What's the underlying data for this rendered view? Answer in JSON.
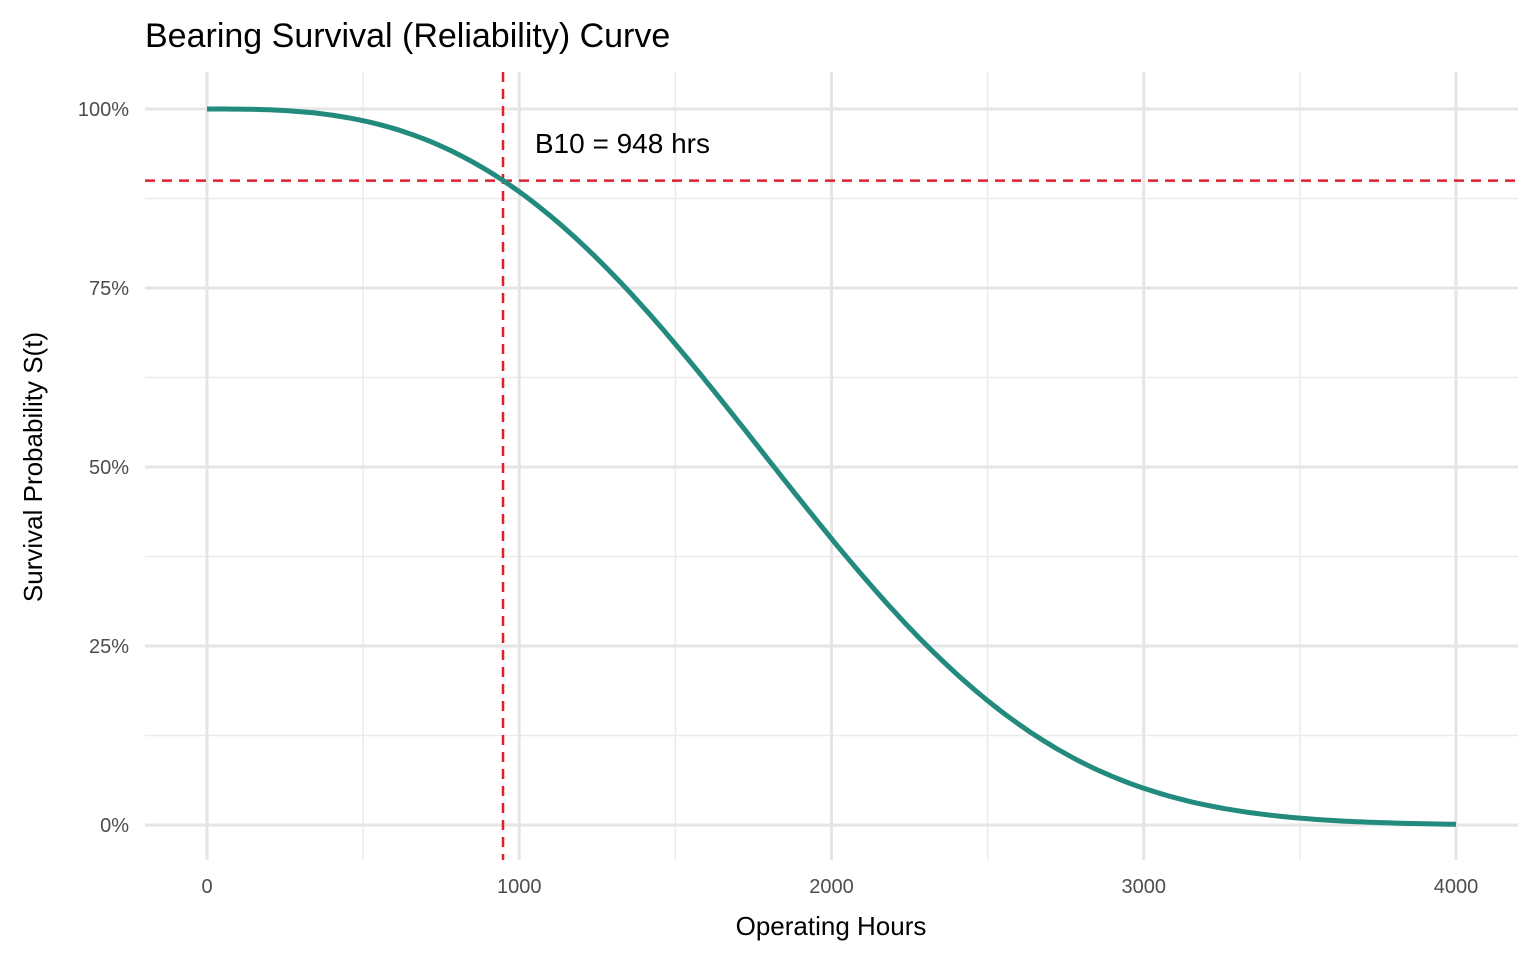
{
  "chart_data": {
    "type": "line",
    "title": "Bearing Survival (Reliability) Curve",
    "xlabel": "Operating Hours",
    "ylabel": "Survival Probability S(t)",
    "xlim": [
      -200,
      4200
    ],
    "ylim": [
      -0.05,
      1.05
    ],
    "x_ticks": [
      0,
      1000,
      2000,
      3000,
      4000
    ],
    "x_tick_labels": [
      "0",
      "1000",
      "2000",
      "3000",
      "4000"
    ],
    "y_ticks": [
      0,
      0.25,
      0.5,
      0.75,
      1.0
    ],
    "y_tick_labels": [
      "0%",
      "25%",
      "50%",
      "75%",
      "100%"
    ],
    "grid": true,
    "series": [
      {
        "name": "S(t)",
        "color": "#238A7E",
        "x": [
          0,
          200,
          400,
          600,
          800,
          948,
          1000,
          1200,
          1400,
          1600,
          1800,
          2000,
          2200,
          2400,
          2600,
          2800,
          3000,
          3200,
          3400,
          3600,
          3800,
          4000
        ],
        "y": [
          1.0,
          0.9989,
          0.9914,
          0.9725,
          0.9377,
          0.9,
          0.8844,
          0.812,
          0.7219,
          0.6188,
          0.5091,
          0.4,
          0.2987,
          0.2112,
          0.1407,
          0.0879,
          0.051,
          0.0278,
          0.014,
          0.0065,
          0.0028,
          0.0011
        ]
      }
    ],
    "reference_lines": [
      {
        "orientation": "vertical",
        "value": 948,
        "color": "#E0202E",
        "style": "dashed"
      },
      {
        "orientation": "horizontal",
        "value": 0.9,
        "color": "#E0202E",
        "style": "dashed"
      }
    ],
    "annotations": [
      {
        "text": "B10 = 948 hrs",
        "x": 1050,
        "y": 0.95
      }
    ]
  }
}
